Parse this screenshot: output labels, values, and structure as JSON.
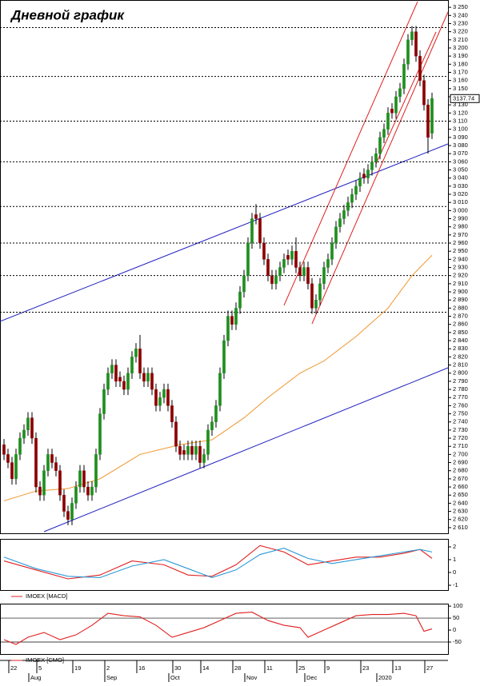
{
  "title": "Дневной график",
  "chart_data": [
    {
      "type": "candlestick",
      "last_price": 3137.74,
      "ylim": [
        2604,
        3258
      ],
      "yticks": [
        {
          "value": 2610,
          "label": "2 610"
        },
        {
          "value": 2620,
          "label": "2 620"
        },
        {
          "value": 2630,
          "label": "2 630"
        },
        {
          "value": 2640,
          "label": "2 640"
        },
        {
          "value": 2650,
          "label": "2 650"
        },
        {
          "value": 2660,
          "label": "2 660"
        },
        {
          "value": 2670,
          "label": "2 670"
        },
        {
          "value": 2680,
          "label": "2 680"
        },
        {
          "value": 2690,
          "label": "2 690"
        },
        {
          "value": 2700,
          "label": "2 700"
        },
        {
          "value": 2710,
          "label": "2 710"
        },
        {
          "value": 2720,
          "label": "2 720"
        },
        {
          "value": 2730,
          "label": "2 730"
        },
        {
          "value": 2740,
          "label": "2 740"
        },
        {
          "value": 2750,
          "label": "2 750"
        },
        {
          "value": 2760,
          "label": "2 760"
        },
        {
          "value": 2770,
          "label": "2 770"
        },
        {
          "value": 2780,
          "label": "2 780"
        },
        {
          "value": 2790,
          "label": "2 790"
        },
        {
          "value": 2800,
          "label": "2 800"
        },
        {
          "value": 2810,
          "label": "2 810"
        },
        {
          "value": 2820,
          "label": "2 820"
        },
        {
          "value": 2830,
          "label": "2 830"
        },
        {
          "value": 2840,
          "label": "2 840"
        },
        {
          "value": 2850,
          "label": "2 850"
        },
        {
          "value": 2860,
          "label": "2 860"
        },
        {
          "value": 2870,
          "label": "2 870"
        },
        {
          "value": 2880,
          "label": "2 880"
        },
        {
          "value": 2890,
          "label": "2 890"
        },
        {
          "value": 2900,
          "label": "2 900"
        },
        {
          "value": 2910,
          "label": "2 910"
        },
        {
          "value": 2920,
          "label": "2 920"
        },
        {
          "value": 2930,
          "label": "2 930"
        },
        {
          "value": 2940,
          "label": "2 940"
        },
        {
          "value": 2950,
          "label": "2 950"
        },
        {
          "value": 2960,
          "label": "2 960"
        },
        {
          "value": 2970,
          "label": "2 970"
        },
        {
          "value": 2980,
          "label": "2 980"
        },
        {
          "value": 2990,
          "label": "2 990"
        },
        {
          "value": 3000,
          "label": "3 000"
        },
        {
          "value": 3010,
          "label": "3 010"
        },
        {
          "value": 3020,
          "label": "3 020"
        },
        {
          "value": 3030,
          "label": "3 030"
        },
        {
          "value": 3040,
          "label": "3 040"
        },
        {
          "value": 3050,
          "label": "3 050"
        },
        {
          "value": 3060,
          "label": "3 060"
        },
        {
          "value": 3070,
          "label": "3 070"
        },
        {
          "value": 3080,
          "label": "3 080"
        },
        {
          "value": 3090,
          "label": "3 090"
        },
        {
          "value": 3100,
          "label": "3 100"
        },
        {
          "value": 3110,
          "label": "3 110"
        },
        {
          "value": 3120,
          "label": "3 120"
        },
        {
          "value": 3130,
          "label": "3 130"
        },
        {
          "value": 3140,
          "label": "3 140"
        },
        {
          "value": 3150,
          "label": "3 150"
        },
        {
          "value": 3160,
          "label": "3 160"
        },
        {
          "value": 3170,
          "label": "3 170"
        },
        {
          "value": 3180,
          "label": "3 180"
        },
        {
          "value": 3190,
          "label": "3 190"
        },
        {
          "value": 3200,
          "label": "3 200"
        },
        {
          "value": 3210,
          "label": "3 210"
        },
        {
          "value": 3220,
          "label": "3 220"
        },
        {
          "value": 3230,
          "label": "3 230"
        },
        {
          "value": 3240,
          "label": "3 240"
        },
        {
          "value": 3250,
          "label": "3 250"
        }
      ],
      "levels": [
        3225,
        3165,
        3110,
        3060,
        3005,
        2960,
        2920,
        2875
      ],
      "up_color": "#1f8f1f",
      "down_color": "#8b0000",
      "open": [
        2712,
        2700,
        2690,
        2670,
        2700,
        2720,
        2730,
        2745,
        2720,
        2660,
        2650,
        2680,
        2700,
        2690,
        2680,
        2650,
        2630,
        2620,
        2640,
        2660,
        2680,
        2660,
        2650,
        2660,
        2700,
        2750,
        2780,
        2800,
        2810,
        2795,
        2790,
        2780,
        2800,
        2820,
        2830,
        2800,
        2790,
        2800,
        2780,
        2760,
        2770,
        2780,
        2760,
        2740,
        2710,
        2705,
        2700,
        2710,
        2700,
        2710,
        2690,
        2700,
        2730,
        2740,
        2760,
        2800,
        2840,
        2870,
        2860,
        2880,
        2900,
        2920,
        2960,
        2995,
        2990,
        2960,
        2940,
        2920,
        2910,
        2920,
        2930,
        2945,
        2940,
        2950,
        2930,
        2920,
        2930,
        2910,
        2880,
        2890,
        2910,
        2930,
        2940,
        2960,
        2980,
        2990,
        3000,
        3010,
        3020,
        3030,
        3045,
        3040,
        3050,
        3060,
        3070,
        3090,
        3100,
        3125,
        3120,
        3140,
        3150,
        3180,
        3210,
        3220,
        3190,
        3160,
        3130,
        3095
      ],
      "high": [
        2719,
        2707,
        2697,
        2707,
        2727,
        2737,
        2752,
        2752,
        2727,
        2667,
        2687,
        2707,
        2707,
        2697,
        2687,
        2657,
        2637,
        2647,
        2667,
        2687,
        2687,
        2667,
        2667,
        2707,
        2757,
        2787,
        2807,
        2817,
        2817,
        2802,
        2797,
        2807,
        2827,
        2837,
        2847,
        2807,
        2807,
        2807,
        2787,
        2777,
        2787,
        2787,
        2767,
        2747,
        2717,
        2712,
        2717,
        2717,
        2717,
        2717,
        2707,
        2737,
        2747,
        2767,
        2807,
        2847,
        2877,
        2877,
        2887,
        2907,
        2927,
        2967,
        2997,
        3008,
        2997,
        2967,
        2947,
        2927,
        2927,
        2937,
        2947,
        2952,
        2957,
        2967,
        2937,
        2937,
        2937,
        2917,
        2897,
        2917,
        2937,
        2947,
        2967,
        2987,
        2997,
        3007,
        3017,
        3027,
        3037,
        3047,
        3052,
        3057,
        3067,
        3077,
        3097,
        3107,
        3127,
        3132,
        3147,
        3157,
        3187,
        3217,
        3227,
        3227,
        3197,
        3167,
        3137,
        3145
      ],
      "low": [
        2693,
        2683,
        2663,
        2663,
        2693,
        2713,
        2723,
        2713,
        2653,
        2643,
        2643,
        2673,
        2683,
        2673,
        2643,
        2623,
        2613,
        2613,
        2633,
        2653,
        2653,
        2643,
        2643,
        2653,
        2693,
        2743,
        2773,
        2793,
        2783,
        2783,
        2773,
        2773,
        2793,
        2813,
        2793,
        2783,
        2783,
        2773,
        2753,
        2753,
        2763,
        2753,
        2733,
        2703,
        2693,
        2693,
        2693,
        2693,
        2693,
        2683,
        2683,
        2693,
        2723,
        2733,
        2753,
        2793,
        2833,
        2853,
        2853,
        2873,
        2893,
        2913,
        2953,
        2983,
        2953,
        2933,
        2913,
        2903,
        2903,
        2913,
        2923,
        2933,
        2933,
        2923,
        2913,
        2913,
        2903,
        2873,
        2873,
        2883,
        2903,
        2923,
        2933,
        2953,
        2973,
        2983,
        2993,
        3003,
        3013,
        3023,
        3033,
        3033,
        3043,
        3053,
        3063,
        3083,
        3093,
        3113,
        3113,
        3133,
        3143,
        3173,
        3203,
        3183,
        3153,
        3123,
        3070,
        3088
      ],
      "close": [
        2700,
        2690,
        2670,
        2700,
        2720,
        2730,
        2745,
        2720,
        2660,
        2650,
        2680,
        2700,
        2690,
        2680,
        2650,
        2630,
        2620,
        2640,
        2660,
        2680,
        2660,
        2650,
        2660,
        2700,
        2750,
        2780,
        2800,
        2810,
        2790,
        2790,
        2780,
        2800,
        2820,
        2830,
        2800,
        2790,
        2800,
        2780,
        2760,
        2770,
        2780,
        2760,
        2740,
        2710,
        2700,
        2700,
        2710,
        2700,
        2710,
        2690,
        2700,
        2730,
        2740,
        2760,
        2800,
        2840,
        2870,
        2860,
        2880,
        2900,
        2920,
        2960,
        2990,
        2990,
        2960,
        2940,
        2920,
        2910,
        2920,
        2930,
        2940,
        2940,
        2950,
        2930,
        2920,
        2930,
        2910,
        2880,
        2890,
        2910,
        2930,
        2940,
        2960,
        2980,
        2990,
        3000,
        3010,
        3020,
        3030,
        3040,
        3040,
        3050,
        3060,
        3070,
        3090,
        3100,
        3120,
        3120,
        3140,
        3150,
        3180,
        3210,
        3220,
        3190,
        3160,
        3130,
        3090,
        3138
      ],
      "ma": {
        "color": "#f0a040",
        "x": [
          0,
          8,
          16,
          24,
          34,
          44,
          52,
          60,
          66,
          74,
          80,
          88,
          96,
          102,
          107
        ],
        "values": [
          2643,
          2655,
          2658,
          2670,
          2700,
          2712,
          2718,
          2745,
          2770,
          2800,
          2815,
          2845,
          2880,
          2920,
          2945
        ]
      },
      "xticks": [
        {
          "value": 2,
          "label": "22"
        },
        {
          "value": 9,
          "label": "5"
        },
        {
          "value": 18,
          "label": "19"
        },
        {
          "value": 26,
          "label": "2"
        },
        {
          "value": 34,
          "label": "16"
        },
        {
          "value": 43,
          "label": "30"
        },
        {
          "value": 50,
          "label": "14"
        },
        {
          "value": 58,
          "label": "28"
        },
        {
          "value": 66,
          "label": "11"
        },
        {
          "value": 74,
          "label": "25"
        },
        {
          "value": 81,
          "label": "9"
        },
        {
          "value": 90,
          "label": "23"
        },
        {
          "value": 98,
          "label": "13"
        },
        {
          "value": 106,
          "label": "27"
        }
      ],
      "months": [
        {
          "value": 7,
          "label": "Aug"
        },
        {
          "value": 26,
          "label": "Sep"
        },
        {
          "value": 42,
          "label": "Oct"
        },
        {
          "value": 61,
          "label": "Nov"
        },
        {
          "value": 76,
          "label": "Dec"
        },
        {
          "value": 94,
          "label": "2020"
        }
      ]
    },
    {
      "type": "line",
      "ylim": [
        -1.375,
        2.56
      ],
      "yticks": [
        2,
        1,
        0,
        -1
      ],
      "series": [
        {
          "name": "IMOEX [MACD]",
          "color": "#e02020",
          "x": [
            0,
            8,
            16,
            24,
            32,
            40,
            46,
            52,
            58,
            64,
            70,
            76,
            82,
            88,
            94,
            100,
            104,
            107
          ],
          "values": [
            0.9,
            0.2,
            -0.5,
            -0.2,
            0.9,
            0.6,
            -0.2,
            -0.3,
            0.6,
            2.1,
            1.6,
            0.6,
            0.9,
            1.2,
            1.2,
            1.5,
            1.8,
            1.1
          ]
        },
        {
          "color": "#2a9ad8",
          "x": [
            0,
            8,
            16,
            24,
            32,
            40,
            46,
            52,
            58,
            64,
            70,
            76,
            82,
            88,
            94,
            100,
            104,
            107
          ],
          "values": [
            1.2,
            0.3,
            -0.3,
            -0.4,
            0.5,
            1.0,
            0.3,
            -0.4,
            0.2,
            1.4,
            1.9,
            1.1,
            0.7,
            1.0,
            1.3,
            1.6,
            1.8,
            1.6
          ]
        }
      ]
    },
    {
      "type": "line",
      "ylim": [
        -100,
        107
      ],
      "yticks": [
        100,
        50,
        0,
        -50
      ],
      "grid_values": [
        50,
        -50
      ],
      "series": [
        {
          "name": "IMOEX [CMO]",
          "color": "#e02020",
          "x": [
            0,
            3,
            6,
            10,
            14,
            18,
            22,
            26,
            30,
            34,
            38,
            42,
            46,
            50,
            54,
            58,
            62,
            66,
            70,
            74,
            76,
            80,
            84,
            88,
            92,
            96,
            100,
            103,
            105,
            107
          ],
          "values": [
            -40,
            -60,
            -30,
            -10,
            -40,
            -20,
            20,
            70,
            60,
            55,
            20,
            -30,
            -10,
            10,
            40,
            70,
            75,
            40,
            20,
            10,
            -30,
            0,
            30,
            60,
            65,
            65,
            70,
            60,
            -5,
            5
          ]
        }
      ]
    }
  ]
}
